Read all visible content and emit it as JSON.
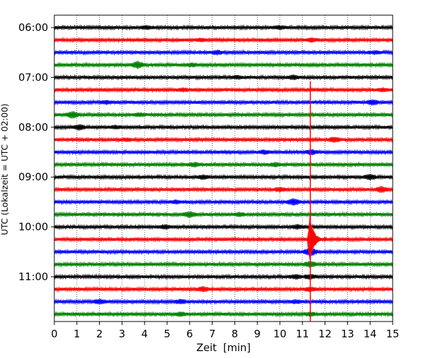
{
  "chart_data": {
    "type": "line",
    "subtype": "helicorder",
    "xlabel": "Zeit  [min]",
    "ylabel": "UTC (Lokalzeit = UTC + 02:00)",
    "xlim": [
      0,
      15
    ],
    "x_ticks": [
      "0",
      "1",
      "2",
      "3",
      "4",
      "5",
      "6",
      "7",
      "8",
      "9",
      "10",
      "11",
      "12",
      "13",
      "14",
      "15"
    ],
    "y_tick_labels": [
      "06:00",
      "07:00",
      "08:00",
      "09:00",
      "10:00",
      "11:00"
    ],
    "trace_interval_min": 15,
    "trace_colors": [
      "#000000",
      "#ff0000",
      "#0000ff",
      "#008000"
    ],
    "grid": "vertical dotted",
    "series": [
      {
        "start": "06:00",
        "events": [
          {
            "x": 4.1,
            "amp": 1.0
          },
          {
            "x": 10.0,
            "amp": 1.0
          }
        ]
      },
      {
        "start": "06:15",
        "events": [
          {
            "x": 6.5,
            "amp": 0.9
          },
          {
            "x": 11.4,
            "amp": 1.2
          }
        ]
      },
      {
        "start": "06:30",
        "events": [
          {
            "x": 7.2,
            "amp": 1.3
          },
          {
            "x": 14.2,
            "amp": 0.9
          }
        ]
      },
      {
        "start": "06:45",
        "events": [
          {
            "x": 3.7,
            "amp": 2.3
          },
          {
            "x": 6.1,
            "amp": 0.9
          }
        ]
      },
      {
        "start": "07:00",
        "events": [
          {
            "x": 8.1,
            "amp": 0.8
          },
          {
            "x": 10.6,
            "amp": 1.2
          }
        ]
      },
      {
        "start": "07:15",
        "events": [
          {
            "x": 5.7,
            "amp": 0.9
          },
          {
            "x": 14.6,
            "amp": 0.9
          }
        ]
      },
      {
        "start": "07:30",
        "events": [
          {
            "x": 2.3,
            "amp": 1.0
          },
          {
            "x": 14.1,
            "amp": 1.6
          }
        ]
      },
      {
        "start": "07:45",
        "events": [
          {
            "x": 0.8,
            "amp": 2.2
          },
          {
            "x": 3.8,
            "amp": 1.0
          }
        ]
      },
      {
        "start": "08:00",
        "events": [
          {
            "x": 1.1,
            "amp": 1.6
          },
          {
            "x": 2.7,
            "amp": 0.9
          }
        ]
      },
      {
        "start": "08:15",
        "events": [
          {
            "x": 12.4,
            "amp": 1.6
          },
          {
            "x": 3.2,
            "amp": 0.8
          }
        ]
      },
      {
        "start": "08:30",
        "events": [
          {
            "x": 9.3,
            "amp": 1.1
          },
          {
            "x": 11.4,
            "amp": 1.5
          }
        ]
      },
      {
        "start": "08:45",
        "events": [
          {
            "x": 6.2,
            "amp": 1.2
          },
          {
            "x": 9.8,
            "amp": 1.0
          }
        ]
      },
      {
        "start": "09:00",
        "events": [
          {
            "x": 6.6,
            "amp": 1.2
          },
          {
            "x": 14.0,
            "amp": 1.6
          }
        ]
      },
      {
        "start": "09:15",
        "events": [
          {
            "x": 10.0,
            "amp": 1.2
          },
          {
            "x": 14.5,
            "amp": 2.0
          }
        ]
      },
      {
        "start": "09:30",
        "events": [
          {
            "x": 10.6,
            "amp": 2.2
          },
          {
            "x": 5.4,
            "amp": 1.0
          }
        ]
      },
      {
        "start": "09:45",
        "events": [
          {
            "x": 6.0,
            "amp": 1.8
          },
          {
            "x": 8.2,
            "amp": 1.0
          }
        ]
      },
      {
        "start": "10:00",
        "events": [
          {
            "x": 4.9,
            "amp": 1.2
          },
          {
            "x": 10.8,
            "amp": 1.2
          }
        ]
      },
      {
        "start": "10:15",
        "events": [
          {
            "x": 11.35,
            "amp": 12.0
          }
        ]
      },
      {
        "start": "10:30",
        "events": [
          {
            "x": 11.35,
            "amp": 3.0
          }
        ]
      },
      {
        "start": "10:45",
        "events": [
          {
            "x": 11.35,
            "amp": 2.0
          }
        ]
      },
      {
        "start": "11:00",
        "events": [
          {
            "x": 10.7,
            "amp": 1.2
          },
          {
            "x": 11.35,
            "amp": 1.5
          }
        ]
      },
      {
        "start": "11:15",
        "events": [
          {
            "x": 6.6,
            "amp": 1.5
          },
          {
            "x": 11.35,
            "amp": 1.3
          }
        ]
      },
      {
        "start": "11:30",
        "events": [
          {
            "x": 2.0,
            "amp": 1.4
          },
          {
            "x": 5.6,
            "amp": 1.2
          },
          {
            "x": 10.7,
            "amp": 1.0
          }
        ]
      },
      {
        "start": "11:45",
        "events": [
          {
            "x": 5.6,
            "amp": 1.1
          },
          {
            "x": 11.35,
            "amp": 1.1
          }
        ]
      }
    ],
    "main_event": {
      "x": 11.35,
      "peak_trace": "10:15",
      "color": "#ff0000"
    }
  }
}
